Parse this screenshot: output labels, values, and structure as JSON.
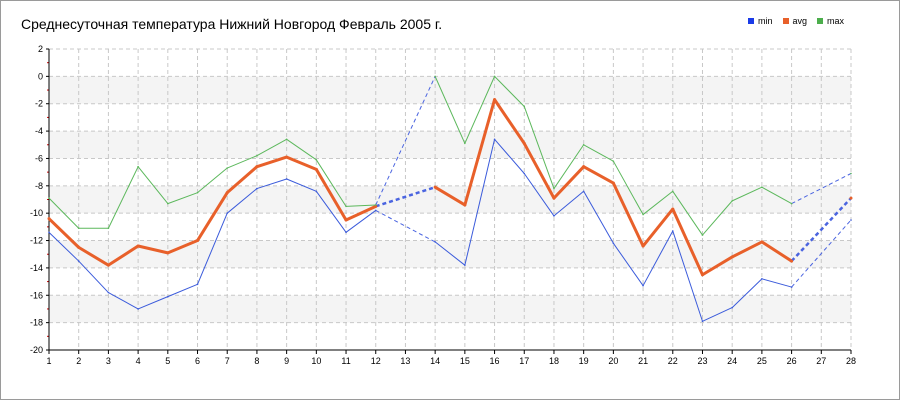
{
  "chart_data": {
    "type": "line",
    "title": "Среднесуточная температура Нижний Новгород  Февраль 2005 г.",
    "x": [
      1,
      2,
      3,
      4,
      5,
      6,
      7,
      8,
      9,
      10,
      11,
      12,
      13,
      14,
      15,
      16,
      17,
      18,
      19,
      20,
      21,
      22,
      23,
      24,
      25,
      26,
      27,
      28
    ],
    "x_tick_labels": [
      "1",
      "2",
      "3",
      "4",
      "5",
      "6",
      "7",
      "8",
      "9",
      "10",
      "11",
      "12",
      "13",
      "14",
      "15",
      "16",
      "17",
      "18",
      "19",
      "20",
      "21",
      "22",
      "23",
      "24",
      "25",
      "26",
      "27",
      "28"
    ],
    "ylim": [
      -20,
      2
    ],
    "y_tick_labels": [
      "2",
      "0",
      "-2",
      "-4",
      "-6",
      "-8",
      "-10",
      "-12",
      "-14",
      "-16",
      "-18",
      "-20"
    ],
    "grid": true,
    "legend_position": "top-right",
    "series": [
      {
        "name": "min",
        "color": "#3b5bdb",
        "values": [
          -11.4,
          -13.5,
          -15.8,
          -17,
          -16.1,
          -15.2,
          -10,
          -8.2,
          -7.5,
          -8.4,
          -11.4,
          -9.8,
          null,
          -12.1,
          -13.8,
          -4.6,
          -7.1,
          -10.2,
          -8.4,
          -12.2,
          -15.3,
          -11.3,
          -17.9,
          -16.9,
          -14.8,
          -15.4,
          null,
          -10.5
        ],
        "dashed_bridges": [
          [
            12,
            14
          ],
          [
            26,
            28
          ]
        ]
      },
      {
        "name": "avg",
        "color": "#e8602a",
        "values": [
          -10.4,
          -12.5,
          -13.8,
          -12.4,
          -12.9,
          -12,
          -8.5,
          -6.6,
          -5.9,
          -6.8,
          -10.5,
          -9.5,
          null,
          -8.1,
          -9.4,
          -1.7,
          -4.9,
          -8.9,
          -6.6,
          -7.8,
          -12.4,
          -9.7,
          -14.5,
          -13.2,
          -12.1,
          -13.5,
          null,
          -8.9
        ],
        "dashed_bridges": [
          [
            12,
            14
          ],
          [
            26,
            28
          ]
        ]
      },
      {
        "name": "max",
        "color": "#5cb85c",
        "values": [
          -8.9,
          -11.1,
          -11.1,
          -6.6,
          -9.3,
          -8.5,
          -6.7,
          -5.8,
          -4.6,
          -6.1,
          -9.5,
          -9.4,
          null,
          0,
          -4.9,
          0,
          -2.2,
          -8.2,
          -5,
          -6.2,
          -10.1,
          -8.4,
          -11.6,
          -9.1,
          -8.1,
          -9.3,
          null,
          -7.1
        ],
        "dashed_bridges": [
          [
            12,
            14
          ],
          [
            26,
            28
          ]
        ]
      }
    ]
  }
}
